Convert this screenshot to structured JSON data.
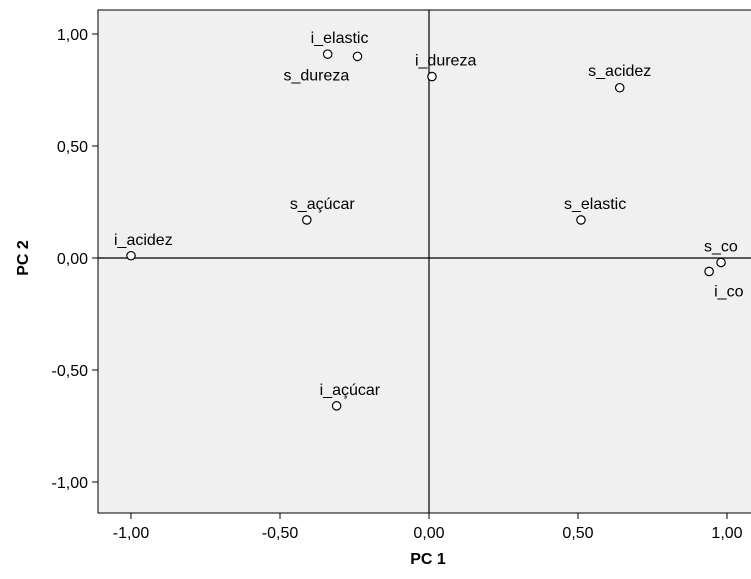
{
  "chart_data": {
    "type": "scatter",
    "xlabel": "PC 1",
    "ylabel": "PC 2",
    "xlim": [
      -1.1,
      1.1
    ],
    "ylim": [
      -1.1,
      1.1
    ],
    "x_ticks": [
      {
        "value": -1.0,
        "label": "-1,00"
      },
      {
        "value": -0.5,
        "label": "-0,50"
      },
      {
        "value": 0.0,
        "label": "0,00"
      },
      {
        "value": 0.5,
        "label": "0,50"
      },
      {
        "value": 1.0,
        "label": "1,00"
      }
    ],
    "y_ticks": [
      {
        "value": 1.0,
        "label": "1,00"
      },
      {
        "value": 0.5,
        "label": "0,50"
      },
      {
        "value": 0.0,
        "label": "0,00"
      },
      {
        "value": -0.5,
        "label": "-0,50"
      },
      {
        "value": -1.0,
        "label": "-1,00"
      }
    ],
    "reference_lines": {
      "x": 0,
      "y": 0
    },
    "grid": false,
    "colors": {
      "plot_background": "#f0f0f0",
      "frame": "#000000",
      "marker_stroke": "#000000",
      "marker_fill": "#ffffff",
      "text": "#000000"
    },
    "points": [
      {
        "label": "i_elastic",
        "x": -0.34,
        "y": 0.91,
        "label_pos": "above-right"
      },
      {
        "label": "s_dureza",
        "x": -0.24,
        "y": 0.9,
        "label_pos": "below-left"
      },
      {
        "label": "i_dureza",
        "x": 0.01,
        "y": 0.81,
        "label_pos": "above-right"
      },
      {
        "label": "s_acidez",
        "x": 0.64,
        "y": 0.76,
        "label_pos": "above"
      },
      {
        "label": "s_açúcar",
        "x": -0.41,
        "y": 0.17,
        "label_pos": "above-right"
      },
      {
        "label": "s_elastic",
        "x": 0.51,
        "y": 0.17,
        "label_pos": "above-right"
      },
      {
        "label": "i_acidez",
        "x": -1.0,
        "y": 0.01,
        "label_pos": "above-right"
      },
      {
        "label": "s_co",
        "x": 0.98,
        "y": -0.02,
        "label_pos": "above-right"
      },
      {
        "label": "i_co",
        "x": 0.94,
        "y": -0.06,
        "label_pos": "below-right"
      },
      {
        "label": "i_açúcar",
        "x": -0.31,
        "y": -0.66,
        "label_pos": "above-right"
      }
    ]
  }
}
